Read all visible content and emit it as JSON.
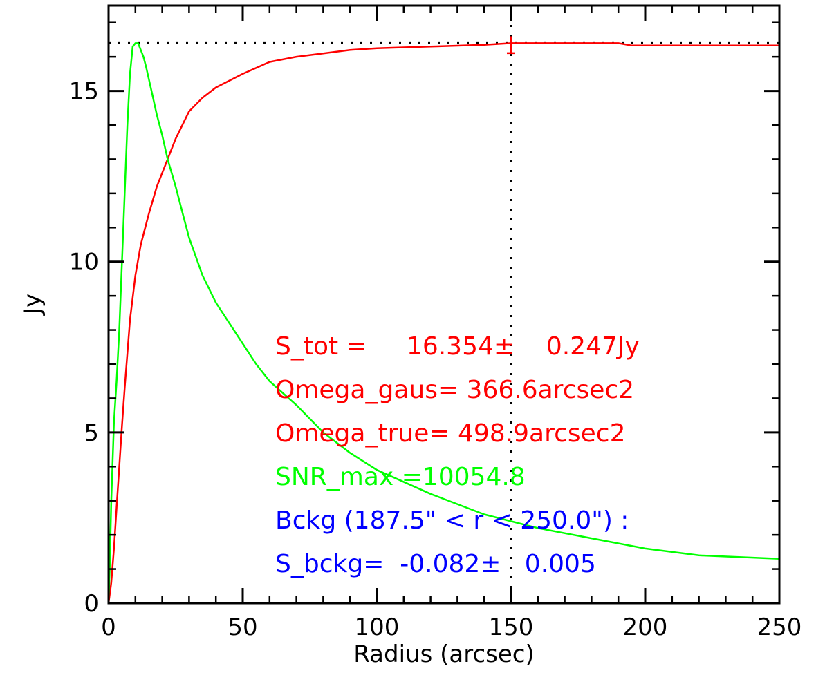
{
  "chart_data": {
    "type": "line",
    "xlabel": "Radius (arcsec)",
    "ylabel": "Jy",
    "xlim": [
      0,
      250
    ],
    "ylim": [
      0,
      17.5
    ],
    "xticks": [
      0,
      50,
      100,
      150,
      200,
      250
    ],
    "yticks": [
      0,
      5,
      10,
      15
    ],
    "xtick_labels": [
      "0",
      "50",
      "100",
      "150",
      "200",
      "250"
    ],
    "ytick_labels": [
      "0",
      "5",
      "10",
      "15"
    ],
    "grid": false,
    "reference_lines": {
      "horizontal_dotted_y": 16.4,
      "vertical_dotted_x": 150
    },
    "series": [
      {
        "color": "#ff0000",
        "x": [
          0,
          1,
          2,
          3,
          4,
          5,
          6,
          8,
          10,
          12,
          15,
          18,
          21,
          25,
          30,
          35,
          40,
          50,
          60,
          70,
          80,
          90,
          100,
          120,
          140,
          150,
          160,
          190,
          195,
          220,
          250
        ],
        "y": [
          0,
          0.6,
          1.6,
          2.8,
          4.0,
          5.2,
          6.3,
          8.3,
          9.6,
          10.5,
          11.4,
          12.2,
          12.8,
          13.6,
          14.4,
          14.8,
          15.1,
          15.5,
          15.85,
          16.0,
          16.1,
          16.2,
          16.25,
          16.3,
          16.35,
          16.4,
          16.4,
          16.4,
          16.33,
          16.33,
          16.33
        ],
        "error_bar": {
          "x": 150,
          "y": 16.354,
          "err": 0.247
        }
      },
      {
        "color": "#00ff00",
        "x": [
          0,
          0.5,
          1,
          2,
          3,
          4,
          5,
          6,
          7,
          8,
          9,
          10,
          11,
          12,
          13,
          14,
          16,
          18,
          20,
          22,
          25,
          28,
          30,
          35,
          40,
          45,
          50,
          55,
          60,
          70,
          80,
          90,
          100,
          120,
          140,
          160,
          180,
          200,
          220,
          250
        ],
        "y": [
          0,
          1.2,
          3.0,
          5.3,
          6.5,
          8.0,
          10.0,
          12.0,
          14.0,
          15.5,
          16.3,
          16.4,
          16.4,
          16.2,
          16.0,
          15.7,
          15.0,
          14.3,
          13.7,
          13.0,
          12.2,
          11.3,
          10.7,
          9.6,
          8.8,
          8.2,
          7.6,
          7.0,
          6.5,
          5.8,
          5.0,
          4.4,
          3.9,
          3.2,
          2.6,
          2.2,
          1.9,
          1.6,
          1.4,
          1.3
        ]
      }
    ],
    "annotations": [
      {
        "text": "S_tot =     16.354±    0.247Jy",
        "color": "#ff0000"
      },
      {
        "text": "Omega_gaus= 366.6arcsec2",
        "color": "#ff0000"
      },
      {
        "text": "Omega_true= 498.9arcsec2",
        "color": "#ff0000"
      },
      {
        "text": "SNR_max =10054.8",
        "color": "#00ff00"
      },
      {
        "text": "Bckg (187.5\" < r < 250.0\") :",
        "color": "#0000ff"
      },
      {
        "text": "S_bckg=  -0.082±   0.005",
        "color": "#0000ff"
      }
    ]
  }
}
